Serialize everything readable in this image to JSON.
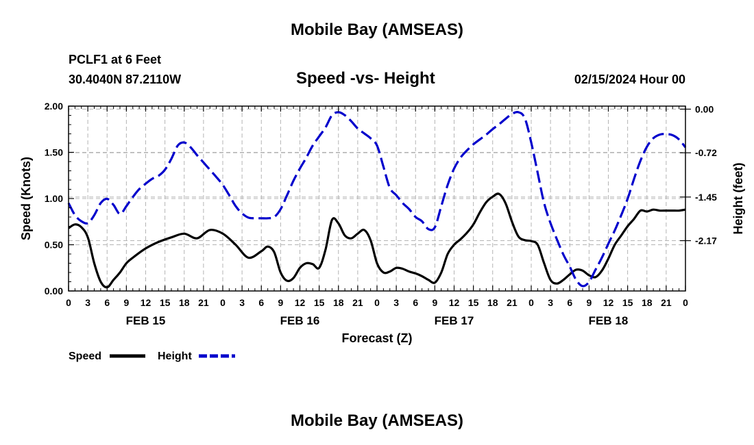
{
  "header": {
    "title": "Mobile Bay (AMSEAS)",
    "station": "PCLF1 at 6 Feet",
    "coords": "30.4040N  87.2110W",
    "subtitle": "Speed -vs- Height",
    "datetime": "02/15/2024 Hour 00"
  },
  "footer": {
    "title": "Mobile Bay (AMSEAS)"
  },
  "legend": {
    "speed_label": "Speed",
    "height_label": "Height"
  },
  "colors": {
    "speed": "#000000",
    "height": "#0000cc",
    "grid": "#b4b4b4"
  },
  "chart_data": {
    "type": "line",
    "title": "Speed -vs- Height",
    "xlabel": "Forecast (Z)",
    "ylabel": "Speed (Knots)",
    "y2label": "Height (feet)",
    "x_range_hours": [
      0,
      96
    ],
    "x_tick_hours": [
      0,
      3,
      6,
      9,
      12,
      15,
      18,
      21,
      24,
      27,
      30,
      33,
      36,
      39,
      42,
      45,
      48,
      51,
      54,
      57,
      60,
      63,
      66,
      69,
      72,
      75,
      78,
      81,
      84,
      87,
      90,
      93,
      96
    ],
    "x_tick_labels": [
      "0",
      "3",
      "6",
      "9",
      "12",
      "15",
      "18",
      "21",
      "0",
      "3",
      "6",
      "9",
      "12",
      "15",
      "18",
      "21",
      "0",
      "3",
      "6",
      "9",
      "12",
      "15",
      "18",
      "21",
      "0",
      "3",
      "6",
      "9",
      "12",
      "15",
      "18",
      "21",
      "0"
    ],
    "date_labels": [
      {
        "hour": 12,
        "label": "FEB 15"
      },
      {
        "hour": 36,
        "label": "FEB 16"
      },
      {
        "hour": 60,
        "label": "FEB 17"
      },
      {
        "hour": 84,
        "label": "FEB 18"
      }
    ],
    "ylim": [
      0,
      2.0
    ],
    "y_ticks": [
      0.0,
      0.5,
      1.0,
      1.5,
      2.0
    ],
    "y_tick_labels": [
      "0.00",
      "0.50",
      "1.00",
      "1.50",
      "2.00"
    ],
    "y2lim": [
      -3.0,
      0.05
    ],
    "y2_ticks": [
      0.0,
      -0.72,
      -1.45,
      -2.17
    ],
    "y2_tick_labels": [
      "0.00",
      "-0.72",
      "-1.45",
      "-2.17"
    ],
    "grid": true,
    "series": [
      {
        "name": "Speed",
        "axis": "left",
        "x": [
          0,
          1,
          2,
          3,
          4,
          5,
          6,
          7,
          8,
          9,
          10,
          12,
          14,
          16,
          18,
          20,
          22,
          24,
          26,
          28,
          30,
          31,
          32,
          33,
          34,
          35,
          36,
          37,
          38,
          39,
          40,
          41,
          42,
          43,
          44,
          45,
          46,
          47,
          48,
          49,
          50,
          51,
          52,
          53,
          54,
          55,
          56,
          57,
          58,
          59,
          60,
          61,
          62,
          63,
          64,
          65,
          66,
          67,
          68,
          69,
          70,
          71,
          72,
          73,
          74,
          75,
          76,
          77,
          78,
          79,
          80,
          81,
          82,
          83,
          84,
          85,
          86,
          87,
          88,
          89,
          90,
          91,
          92,
          93,
          94,
          95,
          96
        ],
        "values": [
          0.68,
          0.72,
          0.69,
          0.58,
          0.3,
          0.1,
          0.04,
          0.12,
          0.2,
          0.3,
          0.36,
          0.46,
          0.53,
          0.58,
          0.62,
          0.57,
          0.66,
          0.62,
          0.5,
          0.36,
          0.43,
          0.48,
          0.42,
          0.2,
          0.11,
          0.14,
          0.25,
          0.3,
          0.29,
          0.25,
          0.45,
          0.77,
          0.73,
          0.6,
          0.57,
          0.62,
          0.66,
          0.55,
          0.3,
          0.2,
          0.21,
          0.25,
          0.24,
          0.21,
          0.19,
          0.16,
          0.12,
          0.09,
          0.2,
          0.4,
          0.5,
          0.56,
          0.63,
          0.72,
          0.85,
          0.96,
          1.02,
          1.05,
          0.95,
          0.75,
          0.59,
          0.55,
          0.54,
          0.5,
          0.3,
          0.12,
          0.08,
          0.12,
          0.18,
          0.23,
          0.22,
          0.17,
          0.15,
          0.22,
          0.35,
          0.5,
          0.6,
          0.7,
          0.78,
          0.87,
          0.86,
          0.88,
          0.87,
          0.87,
          0.87,
          0.87,
          0.88
        ]
      },
      {
        "name": "Height",
        "axis": "right",
        "x": [
          0,
          1,
          2,
          3,
          4,
          5,
          6,
          7,
          8,
          9,
          10,
          11,
          12,
          13,
          14,
          15,
          16,
          17,
          18,
          19,
          20,
          21,
          22,
          23,
          24,
          25,
          26,
          27,
          28,
          29,
          30,
          31,
          32,
          33,
          34,
          35,
          36,
          37,
          38,
          39,
          40,
          41,
          42,
          43,
          44,
          45,
          46,
          47,
          48,
          49,
          50,
          51,
          52,
          53,
          54,
          55,
          56,
          57,
          58,
          59,
          60,
          61,
          62,
          63,
          64,
          65,
          66,
          67,
          68,
          69,
          70,
          71,
          72,
          73,
          74,
          75,
          76,
          77,
          78,
          79,
          80,
          81,
          82,
          83,
          84,
          85,
          86,
          87,
          88,
          89,
          90,
          91,
          92,
          93,
          94,
          95,
          96
        ],
        "values": [
          -1.55,
          -1.75,
          -1.85,
          -1.88,
          -1.75,
          -1.55,
          -1.48,
          -1.58,
          -1.73,
          -1.6,
          -1.45,
          -1.32,
          -1.23,
          -1.15,
          -1.1,
          -1.0,
          -0.82,
          -0.6,
          -0.55,
          -0.63,
          -0.76,
          -0.88,
          -1.0,
          -1.12,
          -1.25,
          -1.42,
          -1.6,
          -1.72,
          -1.79,
          -1.8,
          -1.8,
          -1.8,
          -1.78,
          -1.65,
          -1.42,
          -1.18,
          -0.98,
          -0.8,
          -0.6,
          -0.45,
          -0.3,
          -0.1,
          -0.05,
          -0.1,
          -0.2,
          -0.32,
          -0.4,
          -0.48,
          -0.6,
          -0.95,
          -1.3,
          -1.42,
          -1.55,
          -1.65,
          -1.78,
          -1.85,
          -1.98,
          -1.95,
          -1.6,
          -1.25,
          -0.98,
          -0.8,
          -0.68,
          -0.58,
          -0.5,
          -0.42,
          -0.33,
          -0.25,
          -0.16,
          -0.08,
          -0.05,
          -0.15,
          -0.55,
          -1.05,
          -1.55,
          -1.88,
          -2.15,
          -2.4,
          -2.6,
          -2.82,
          -2.92,
          -2.85,
          -2.65,
          -2.45,
          -2.22,
          -2.0,
          -1.75,
          -1.48,
          -1.15,
          -0.85,
          -0.62,
          -0.48,
          -0.42,
          -0.41,
          -0.43,
          -0.5,
          -0.63
        ]
      }
    ]
  }
}
